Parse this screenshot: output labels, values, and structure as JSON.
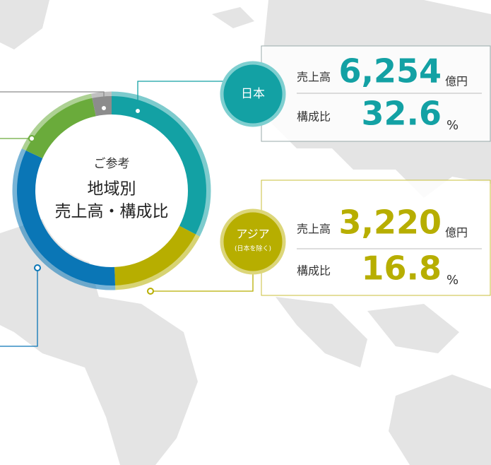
{
  "chart_data": {
    "type": "pie",
    "title_lines": [
      "ご参考",
      "地域別",
      "売上高・構成比"
    ],
    "categories": [
      "日本",
      "アジア",
      null,
      null,
      null
    ],
    "category_notes": [
      null,
      "(日本を除く)",
      null,
      null,
      null
    ],
    "values": [
      32.6,
      16.8,
      32.6,
      14.7,
      3.3
    ],
    "colors": [
      "#13a1a4",
      "#b7ae00",
      "#0a76b6",
      "#6aab3b",
      "#8c8c8c"
    ],
    "unit": "%",
    "share_label": "構成比",
    "sales": {
      "label": "売上高",
      "unit": "億円",
      "values": [
        6254,
        3220,
        null,
        null,
        null
      ],
      "value_labels": [
        "6,254",
        "3,220",
        null,
        null,
        null
      ]
    }
  }
}
